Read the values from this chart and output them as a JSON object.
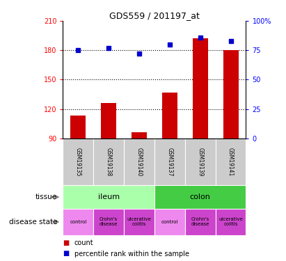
{
  "title": "GDS559 / 201197_at",
  "samples": [
    "GSM19135",
    "GSM19138",
    "GSM19140",
    "GSM19137",
    "GSM19139",
    "GSM19141"
  ],
  "bar_values": [
    113,
    126,
    96,
    137,
    192,
    180
  ],
  "scatter_values": [
    75,
    77,
    72,
    80,
    86,
    83
  ],
  "bar_color": "#cc0000",
  "scatter_color": "#0000cc",
  "ylim_left": [
    90,
    210
  ],
  "ylim_right": [
    0,
    100
  ],
  "yticks_left": [
    90,
    120,
    150,
    180,
    210
  ],
  "yticks_right": [
    0,
    25,
    50,
    75,
    100
  ],
  "ytick_labels_right": [
    "0",
    "25",
    "50",
    "75",
    "100%"
  ],
  "hlines": [
    120,
    150,
    180
  ],
  "tissue_data": [
    [
      "ileum",
      0,
      3,
      "#aaffaa"
    ],
    [
      "colon",
      3,
      6,
      "#44cc44"
    ]
  ],
  "disease_labels": [
    "control",
    "Crohn's\ndisease",
    "ulcerative\ncolitis",
    "control",
    "Crohn's\ndisease",
    "ulcerative\ncolitis"
  ],
  "disease_colors": [
    "#ee88ee",
    "#cc44cc",
    "#cc44cc",
    "#ee88ee",
    "#cc44cc",
    "#cc44cc"
  ],
  "sample_bg_color": "#cccccc",
  "legend_count_color": "#cc0000",
  "legend_scatter_color": "#0000cc",
  "legend_count_label": "count",
  "legend_scatter_label": "percentile rank within the sample",
  "tissue_row_label": "tissue",
  "disease_row_label": "disease state"
}
